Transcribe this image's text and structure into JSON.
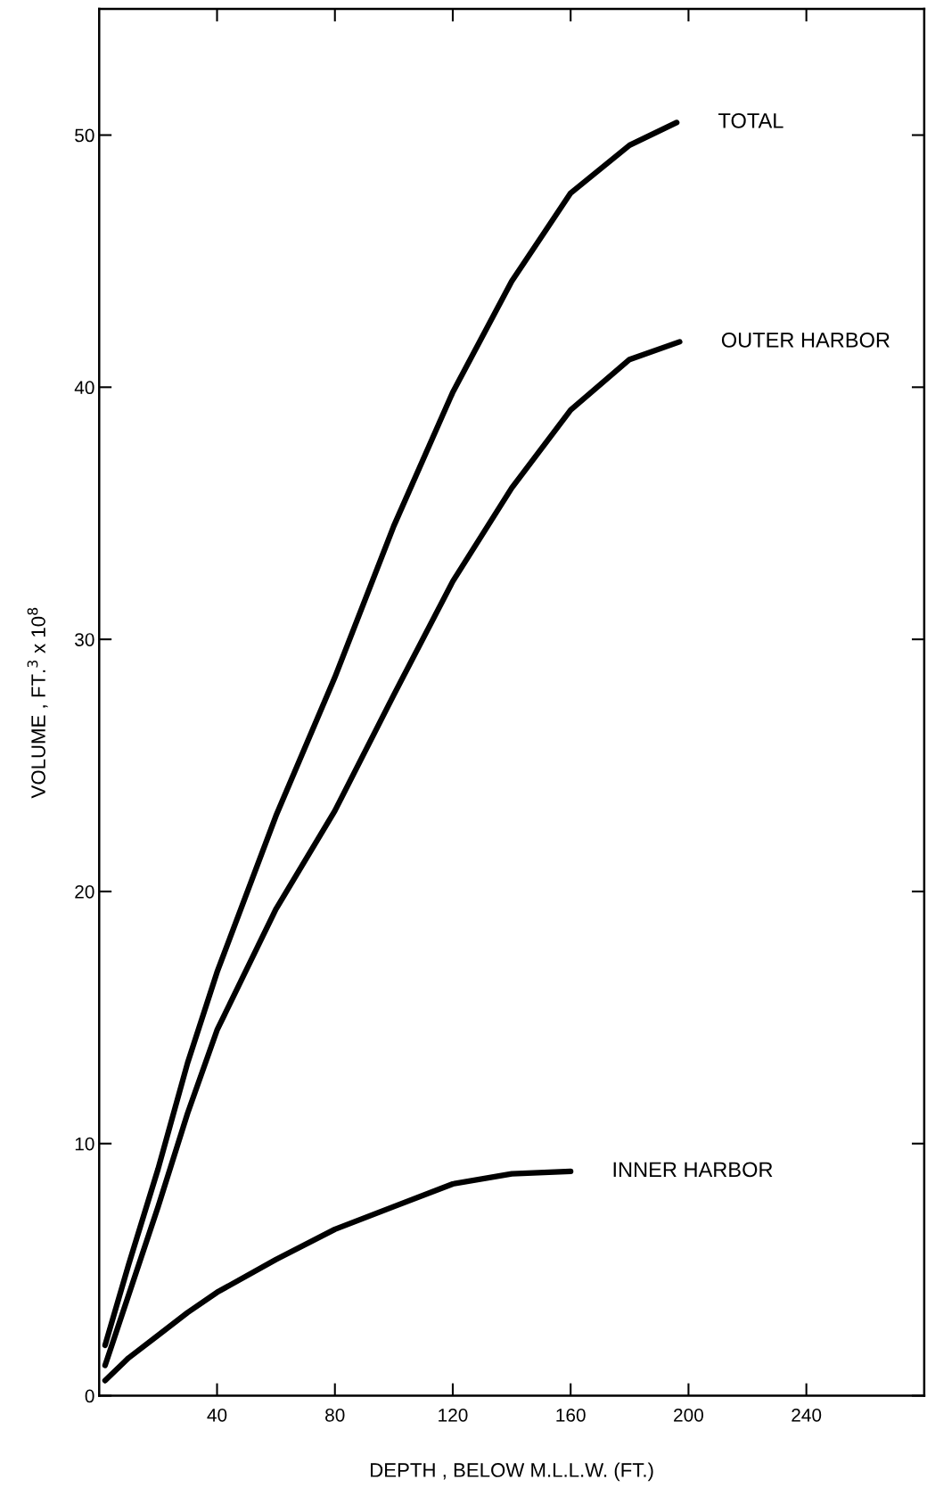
{
  "chart_data": {
    "type": "line",
    "xlabel": "DEPTH , BELOW M.L.L.W. (FT.)",
    "ylabel": "VOLUME , FT.$^{3}$ x 10$^{8}$",
    "xlim": [
      0,
      280
    ],
    "ylim": [
      0,
      55
    ],
    "xticks": [
      40,
      80,
      120,
      160,
      200,
      240
    ],
    "yticks": [
      0,
      10,
      20,
      30,
      40,
      50
    ],
    "grid": false,
    "legend": false,
    "marker": "none",
    "line_style": "solid",
    "series": [
      {
        "name": "TOTAL",
        "color": "#000000",
        "x": [
          2,
          10,
          20,
          30,
          40,
          60,
          80,
          100,
          120,
          140,
          160,
          180,
          196
        ],
        "values": [
          2.0,
          5.2,
          9.0,
          13.2,
          16.8,
          23.0,
          28.5,
          34.5,
          39.8,
          44.2,
          47.7,
          49.6,
          50.5
        ]
      },
      {
        "name": "OUTER HARBOR",
        "color": "#000000",
        "x": [
          2,
          10,
          20,
          30,
          40,
          60,
          80,
          100,
          120,
          140,
          160,
          180,
          197
        ],
        "values": [
          1.2,
          4.0,
          7.5,
          11.2,
          14.5,
          19.3,
          23.2,
          27.8,
          32.3,
          36.0,
          39.1,
          41.1,
          41.8
        ]
      },
      {
        "name": "INNER HARBOR",
        "color": "#000000",
        "x": [
          2,
          10,
          20,
          30,
          40,
          60,
          80,
          100,
          120,
          140,
          160
        ],
        "values": [
          0.6,
          1.5,
          2.4,
          3.3,
          4.1,
          5.4,
          6.6,
          7.5,
          8.4,
          8.8,
          8.9
        ]
      }
    ]
  }
}
